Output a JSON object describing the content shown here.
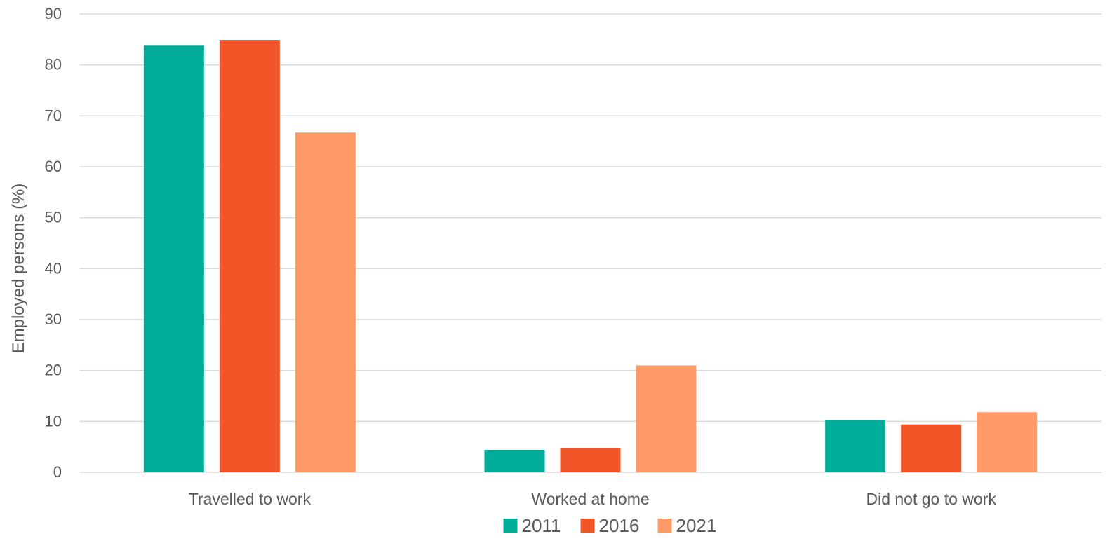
{
  "chart_data": {
    "type": "bar",
    "title": "",
    "xlabel": "",
    "ylabel": "Employed persons (%)",
    "ylim": [
      0,
      90
    ],
    "ytick_step": 10,
    "grid": true,
    "legend_position": "bottom",
    "categories": [
      "Travelled to work",
      "Worked at home",
      "Did not go to work"
    ],
    "series": [
      {
        "name": "2011",
        "color": "#00ac9a",
        "values": [
          83.9,
          4.4,
          10.2
        ]
      },
      {
        "name": "2016",
        "color": "#f15426",
        "values": [
          84.9,
          4.7,
          9.4
        ]
      },
      {
        "name": "2021",
        "color": "#ff9966",
        "values": [
          66.7,
          21.0,
          11.8
        ]
      }
    ]
  }
}
